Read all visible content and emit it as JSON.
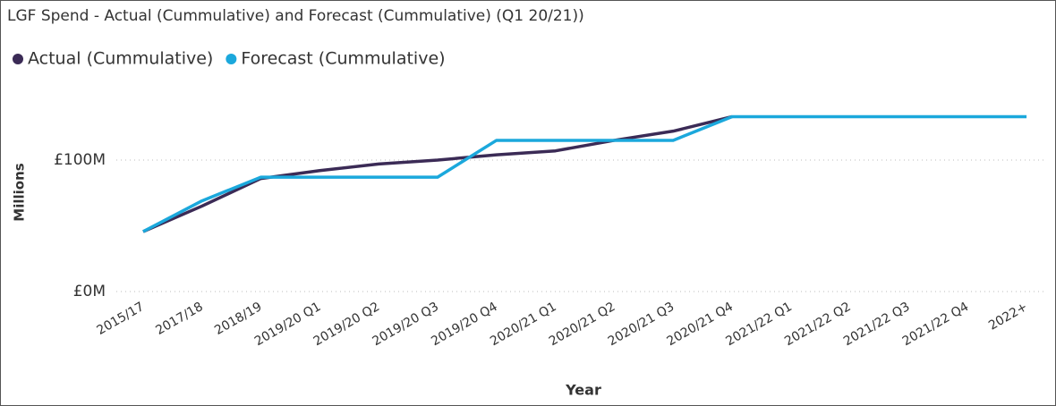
{
  "chart_data": {
    "type": "line",
    "title": "LGF Spend - Actual (Cummulative) and Forecast (Cummulative) (Q1 20/21))",
    "x_label": "Year",
    "y_label": "Millions",
    "categories": [
      "2015/17",
      "2017/18",
      "2018/19",
      "2019/20 Q1",
      "2019/20 Q2",
      "2019/20 Q3",
      "2019/20 Q4",
      "2020/21 Q1",
      "2020/21 Q2",
      "2020/21 Q3",
      "2020/21 Q4",
      "2021/22 Q1",
      "2021/22 Q2",
      "2021/22 Q3",
      "2021/22 Q4",
      "2022+"
    ],
    "series": [
      {
        "name": "Actual (Cummulative)",
        "color": "#3b2b56",
        "values": [
          45.6,
          65,
          86,
          92,
          97,
          100,
          104,
          107,
          115,
          122,
          133,
          null,
          null,
          null,
          null,
          null
        ]
      },
      {
        "name": "Forecast (Cummulative)",
        "color": "#1ba8dc",
        "values": [
          45.6,
          69,
          87,
          87,
          87,
          87,
          115,
          115,
          115,
          115,
          133,
          133,
          133,
          133,
          133,
          133
        ]
      }
    ],
    "ylim": [
      0,
      150
    ],
    "yticks": [
      {
        "value": 0,
        "label": "£0M"
      },
      {
        "value": 100,
        "label": "£100M"
      }
    ],
    "grid": true,
    "legend": "top-left"
  }
}
